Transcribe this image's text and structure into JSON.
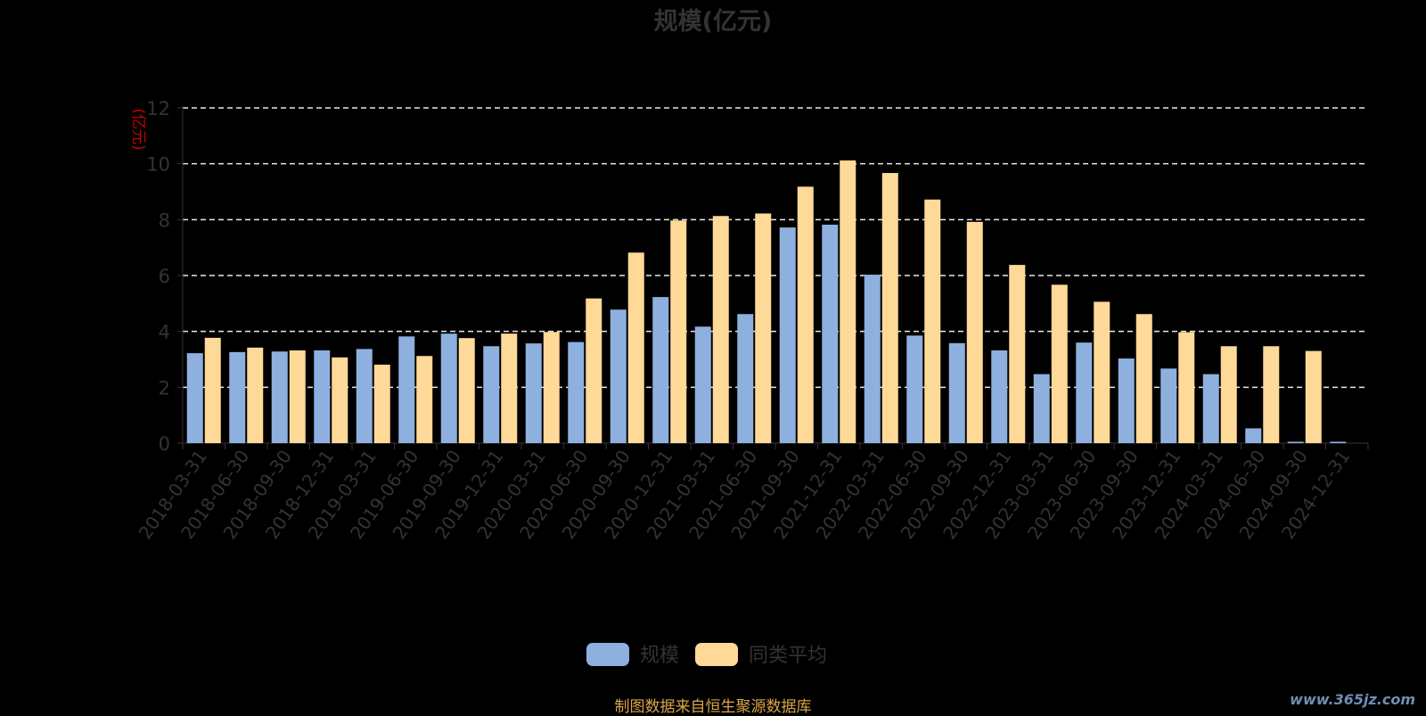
{
  "chart_data": {
    "type": "bar",
    "title": "规模(亿元)",
    "ylabel": "(亿元)",
    "ylim": [
      0,
      12
    ],
    "yticks": [
      0,
      2,
      4,
      6,
      8,
      10,
      12
    ],
    "grid": true,
    "legend_position": "bottom",
    "categories": [
      "2018-03-31",
      "2018-06-30",
      "2018-09-30",
      "2018-12-31",
      "2019-03-31",
      "2019-06-30",
      "2019-09-30",
      "2019-12-31",
      "2020-03-31",
      "2020-06-30",
      "2020-09-30",
      "2020-12-31",
      "2021-03-31",
      "2021-06-30",
      "2021-09-30",
      "2021-12-31",
      "2022-03-31",
      "2022-06-30",
      "2022-09-30",
      "2022-12-31",
      "2023-03-31",
      "2023-06-30",
      "2023-09-30",
      "2023-12-31",
      "2024-03-31",
      "2024-06-30",
      "2024-09-30",
      "2024-12-31"
    ],
    "series": [
      {
        "name": "规模",
        "color": "#8eb0de",
        "values": [
          3.22,
          3.26,
          3.28,
          3.32,
          3.37,
          3.82,
          3.92,
          3.47,
          3.57,
          3.62,
          4.78,
          5.23,
          4.17,
          4.62,
          7.72,
          7.82,
          6.03,
          3.85,
          3.58,
          3.32,
          2.47,
          3.6,
          3.03,
          2.67,
          2.47,
          0.53,
          0.05,
          0.05
        ]
      },
      {
        "name": "同类平均",
        "color": "#ffd998",
        "values": [
          3.77,
          3.42,
          3.32,
          3.07,
          2.81,
          3.12,
          3.76,
          3.92,
          3.98,
          5.18,
          6.82,
          7.97,
          8.13,
          8.22,
          9.18,
          10.12,
          9.67,
          8.72,
          7.92,
          6.38,
          5.67,
          5.06,
          4.62,
          3.97,
          3.47,
          3.47,
          3.3,
          null
        ]
      }
    ]
  },
  "footer": {
    "source_note": "制图数据来自恒生聚源数据库",
    "watermark": "www.365jz.com"
  }
}
